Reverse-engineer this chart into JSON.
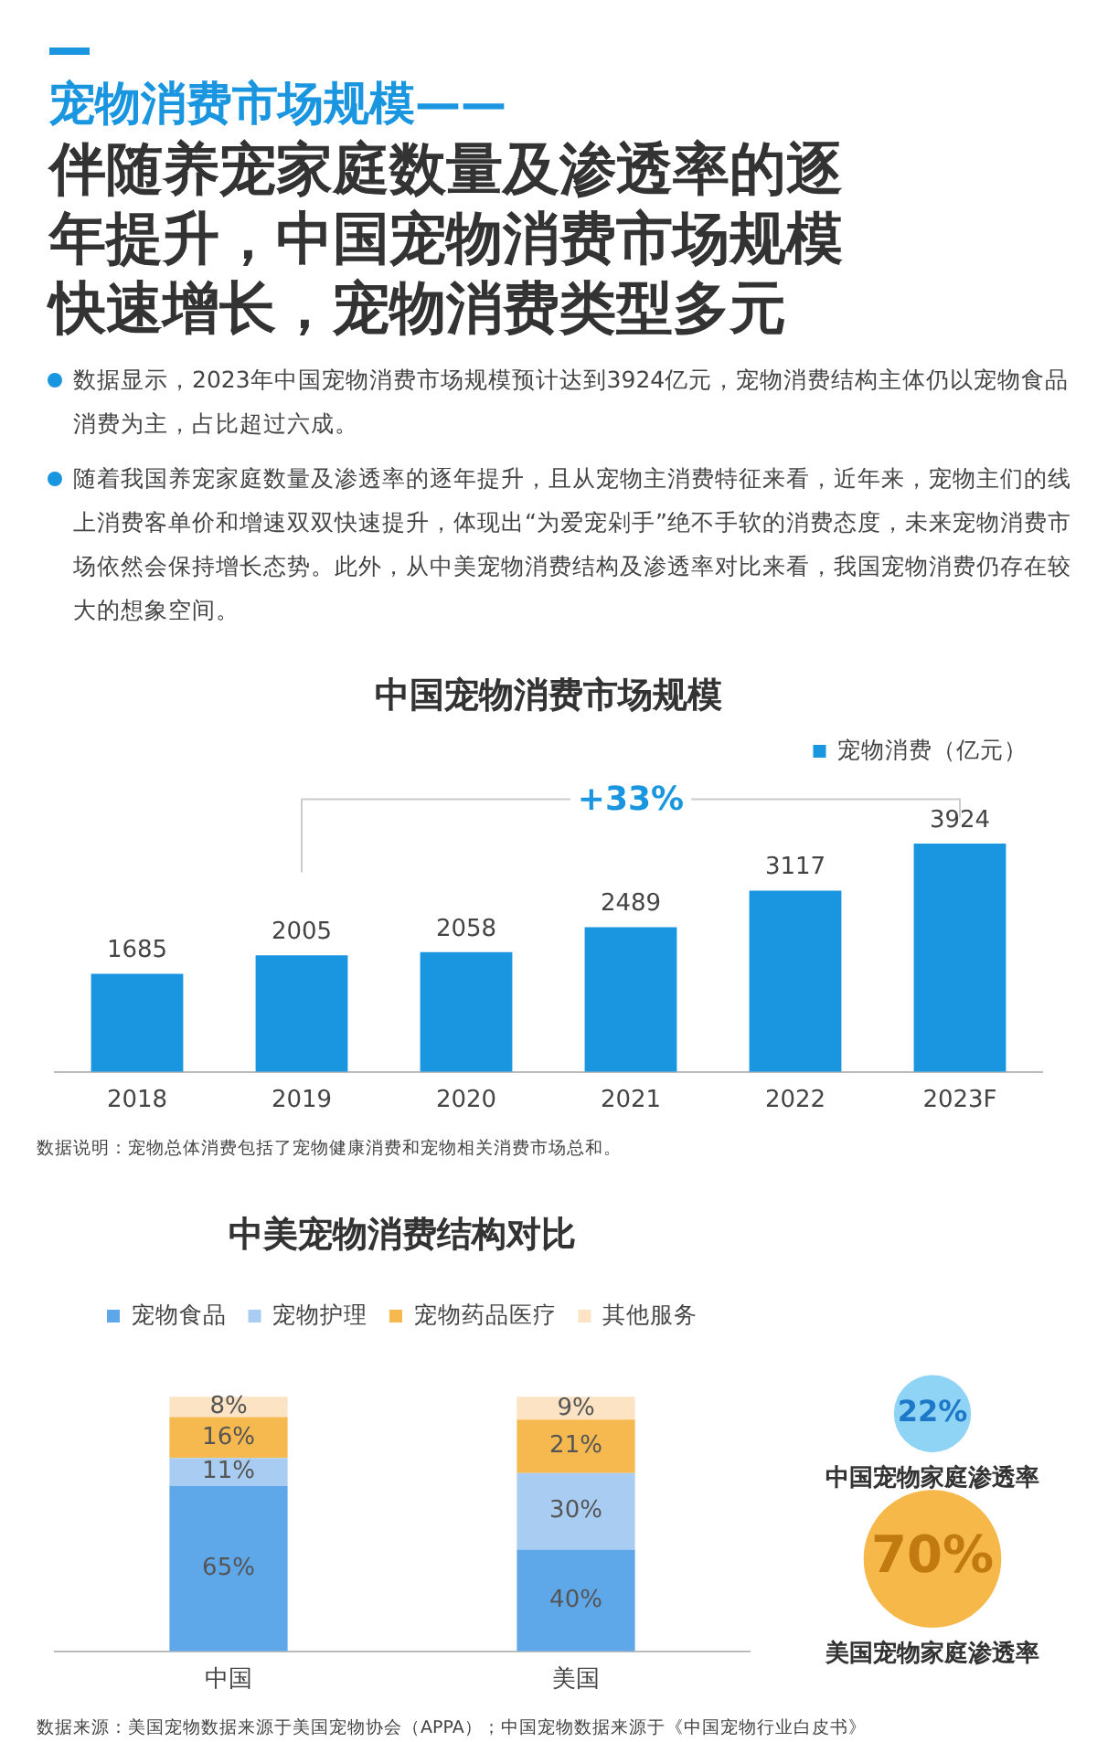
{
  "chart_data": [
    {
      "type": "other",
      "title": "宠物消费市场规模——",
      "subtitle": "伴随养宠家庭数量及渗透率的逐年提升，中国宠物消费市场规模快速增长，宠物消费类型多元",
      "annotations": [
        "数据显示，2023年中国宠物消费市场规模预计达到3924亿元，宠物消费结构主体仍以宠物食品消费为主，占比超过六成。",
        "随着我国养宠家庭数量及渗透率的逐年提升，且从宠物主消费特征来看，近年来，宠物主们的线上消费客单价和增速双双快速提升，体现出“为爱宠剁手”绝不手软的消费态度，未来宠物消费市场依然会保持增长态势。此外，从中美宠物消费结构及渗透率对比来看，我国宠物消费仍存在较大的想象空间。"
      ]
    },
    {
      "type": "bar",
      "title": "中国宠物消费市场规模",
      "categories": [
        "2018",
        "2019",
        "2020",
        "2021",
        "2022",
        "2023F"
      ],
      "series": [
        {
          "name": "宠物消费（亿元）",
          "color": "#1a96e0",
          "values": [
            1685,
            2005,
            2058,
            2489,
            3117,
            3924
          ]
        }
      ],
      "data_labels": true,
      "grid": false,
      "legend": "top right",
      "tick_labels": "x",
      "annotations": [
        "+33%",
        "数据说明：宠物总体消费包括了宠物健康消费和宠物相关消费市场总和。"
      ]
    },
    {
      "type": "bar",
      "title": "中美宠物消费结构对比",
      "categories": [
        "中国",
        "美国"
      ],
      "stacked": true,
      "series": [
        {
          "name": "宠物食品",
          "color": "#5ea8ea",
          "values": [
            65,
            40
          ],
          "value_labels": [
            "65%",
            "40%"
          ]
        },
        {
          "name": "宠物护理",
          "color": "#a9cdf2",
          "values": [
            11,
            30
          ],
          "value_labels": [
            "11%",
            "30%"
          ]
        },
        {
          "name": "宠物药品医疗",
          "color": "#f5b94f",
          "values": [
            16,
            21
          ],
          "value_labels": [
            "16%",
            "21%"
          ]
        },
        {
          "name": "其他服务",
          "color": "#fbe3c4",
          "values": [
            8,
            9
          ],
          "value_labels": [
            "8%",
            "9%"
          ]
        }
      ],
      "grid": false,
      "legend": "top",
      "tick_labels": "x",
      "annotations": [
        "数据来源：美国宠物数据来源于美国宠物协会（APPA）；中国宠物数据来源于《中国宠物行业白皮书》"
      ]
    },
    {
      "type": "other",
      "categories": [
        "中国宠物家庭渗透率",
        "美国宠物家庭渗透率"
      ],
      "values": [
        22,
        70
      ],
      "value_labels": [
        "22%",
        "70%"
      ],
      "colors": [
        "#8fd3f5",
        "#f7b84a"
      ]
    }
  ]
}
